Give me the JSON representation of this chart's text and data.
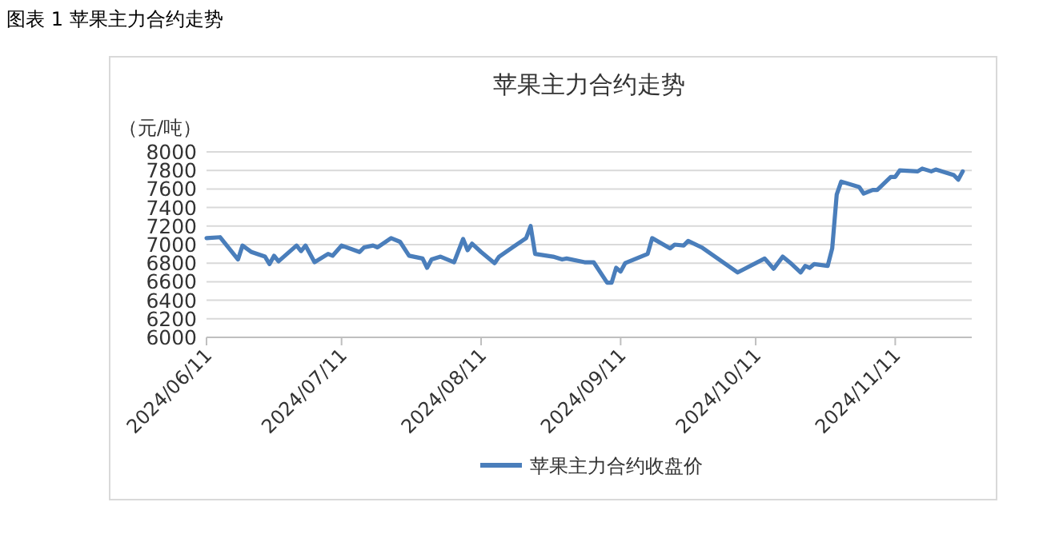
{
  "chart_data": {
    "type": "line",
    "title": "苹果主力合约走势",
    "ylabel": "（元/吨）",
    "annotations": [
      "图表 1  苹果主力合约走势"
    ],
    "x": [
      "2024-06-11",
      "2024-06-14",
      "2024-06-18",
      "2024-06-19",
      "2024-06-21",
      "2024-06-24",
      "2024-06-25",
      "2024-06-26",
      "2024-06-27",
      "2024-07-01",
      "2024-07-02",
      "2024-07-03",
      "2024-07-05",
      "2024-07-08",
      "2024-07-09",
      "2024-07-11",
      "2024-07-15",
      "2024-07-16",
      "2024-07-18",
      "2024-07-19",
      "2024-07-22",
      "2024-07-24",
      "2024-07-26",
      "2024-07-29",
      "2024-07-30",
      "2024-07-31",
      "2024-08-02",
      "2024-08-05",
      "2024-08-07",
      "2024-08-08",
      "2024-08-09",
      "2024-08-11",
      "2024-08-14",
      "2024-08-15",
      "2024-08-18",
      "2024-08-21",
      "2024-08-22",
      "2024-08-23",
      "2024-08-27",
      "2024-08-29",
      "2024-08-30",
      "2024-09-03",
      "2024-09-05",
      "2024-09-08",
      "2024-09-09",
      "2024-09-10",
      "2024-09-11",
      "2024-09-12",
      "2024-09-17",
      "2024-09-18",
      "2024-09-22",
      "2024-09-23",
      "2024-09-25",
      "2024-09-26",
      "2024-09-29",
      "2024-10-07",
      "2024-10-13",
      "2024-10-15",
      "2024-10-17",
      "2024-10-19",
      "2024-10-21",
      "2024-10-22",
      "2024-10-23",
      "2024-10-24",
      "2024-10-27",
      "2024-10-28",
      "2024-10-29",
      "2024-10-30",
      "2024-11-03",
      "2024-11-04",
      "2024-11-06",
      "2024-11-07",
      "2024-11-10",
      "2024-11-11",
      "2024-11-12",
      "2024-11-16",
      "2024-11-17",
      "2024-11-19",
      "2024-11-20",
      "2024-11-24",
      "2024-11-25",
      "2024-11-26"
    ],
    "series": [
      {
        "name": "苹果主力合约收盘价",
        "color": "#4a7ebb",
        "values": [
          7070,
          7080,
          6840,
          6990,
          6920,
          6870,
          6790,
          6880,
          6820,
          6990,
          6930,
          6990,
          6810,
          6900,
          6880,
          6990,
          6920,
          6970,
          6990,
          6970,
          7070,
          7030,
          6880,
          6850,
          6750,
          6840,
          6870,
          6810,
          7060,
          6940,
          7010,
          6920,
          6800,
          6870,
          6970,
          7070,
          7200,
          6900,
          6870,
          6840,
          6850,
          6810,
          6810,
          6590,
          6590,
          6750,
          6710,
          6800,
          6900,
          7070,
          6960,
          7000,
          6990,
          7040,
          6970,
          6700,
          6850,
          6740,
          6870,
          6790,
          6700,
          6770,
          6750,
          6790,
          6770,
          6960,
          7540,
          7680,
          7620,
          7550,
          7590,
          7590,
          7730,
          7730,
          7800,
          7790,
          7820,
          7790,
          7810,
          7750,
          7700,
          7790
        ]
      }
    ],
    "xlim": [
      "2024-06-11",
      "2024-11-28"
    ],
    "xticks": [
      {
        "value": "2024-06-11",
        "label": "2024/06/11"
      },
      {
        "value": "2024-07-11",
        "label": "2024/07/11"
      },
      {
        "value": "2024-08-11",
        "label": "2024/08/11"
      },
      {
        "value": "2024-09-11",
        "label": "2024/09/11"
      },
      {
        "value": "2024-10-11",
        "label": "2024/10/11"
      },
      {
        "value": "2024-11-11",
        "label": "2024/11/11"
      }
    ],
    "ylim": [
      6000,
      8000
    ],
    "yticks": [
      6000,
      6200,
      6400,
      6600,
      6800,
      7000,
      7200,
      7400,
      7600,
      7800,
      8000
    ],
    "grid": "y",
    "legend": "bottom",
    "marker": "none",
    "line_style": "solid"
  }
}
